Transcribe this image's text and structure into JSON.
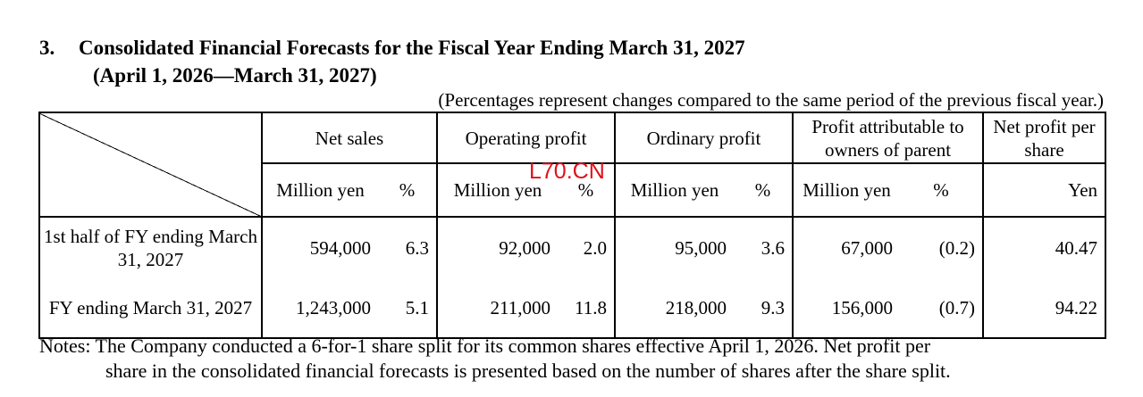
{
  "heading": {
    "number": "3.",
    "title": "Consolidated Financial Forecasts for the Fiscal Year Ending March 31, 2027",
    "period": "(April 1, 2026—March 31, 2027)"
  },
  "percent_note": "(Percentages represent changes compared to the same period of the previous fiscal year.)",
  "table": {
    "columns": {
      "net_sales": "Net sales",
      "operating_profit": "Operating profit",
      "ordinary_profit": "Ordinary profit",
      "profit_attr": "Profit attributable to owners of parent",
      "eps": "Net profit per share"
    },
    "units": {
      "million_yen": "Million yen",
      "percent": "%",
      "yen": "Yen"
    },
    "rows": [
      {
        "label": "1st half of FY ending March 31, 2027",
        "net_sales": "594,000",
        "net_sales_pct": "6.3",
        "operating_profit": "92,000",
        "operating_profit_pct": "2.0",
        "ordinary_profit": "95,000",
        "ordinary_profit_pct": "3.6",
        "profit_attr": "67,000",
        "profit_attr_pct": "(0.2)",
        "eps": "40.47"
      },
      {
        "label": "FY ending March 31, 2027",
        "net_sales": "1,243,000",
        "net_sales_pct": "5.1",
        "operating_profit": "211,000",
        "operating_profit_pct": "11.8",
        "ordinary_profit": "218,000",
        "ordinary_profit_pct": "9.3",
        "profit_attr": "156,000",
        "profit_attr_pct": "(0.7)",
        "eps": "94.22"
      }
    ]
  },
  "notes": {
    "line1": "Notes: The Company conducted a 6-for-1 share split for its common shares effective April 1, 2026. Net profit per",
    "line2": "share in the consolidated financial forecasts is presented based on the number of shares after the share split."
  },
  "watermark": "L70.CN"
}
